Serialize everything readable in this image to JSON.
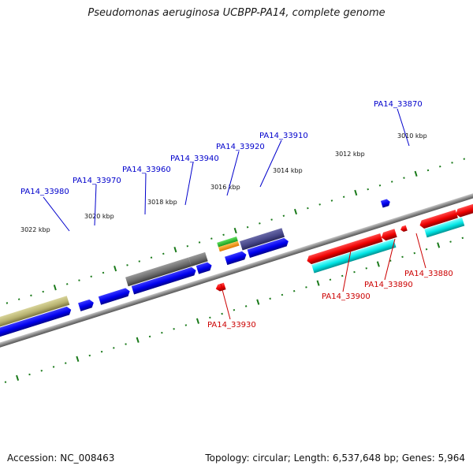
{
  "title": "Pseudomonas aeruginosa UCBPP-PA14, complete genome",
  "footer": {
    "accession": "Accession: NC_008463",
    "topology": "Topology: circular; Length: 6,537,648 bp; Genes: 5,964"
  },
  "kbp_labels": [
    "3022 kbp",
    "3020 kbp",
    "3018 kbp",
    "3016 kbp",
    "3014 kbp",
    "3012 kbp",
    "3010 kbp"
  ],
  "gene_labels": {
    "minus_strand": [
      "PA14_33980",
      "PA14_33970",
      "PA14_33960",
      "PA14_33940",
      "PA14_33920",
      "PA14_33910",
      "PA14_33870"
    ],
    "plus_strand": [
      "PA14_33930",
      "PA14_33900",
      "PA14_33890",
      "PA14_33880"
    ]
  },
  "colors": {
    "minus_strand": "#0000cc",
    "plus_strand": "#cc0000",
    "ticks": "#1a7a1a",
    "backbone": "#888888"
  }
}
